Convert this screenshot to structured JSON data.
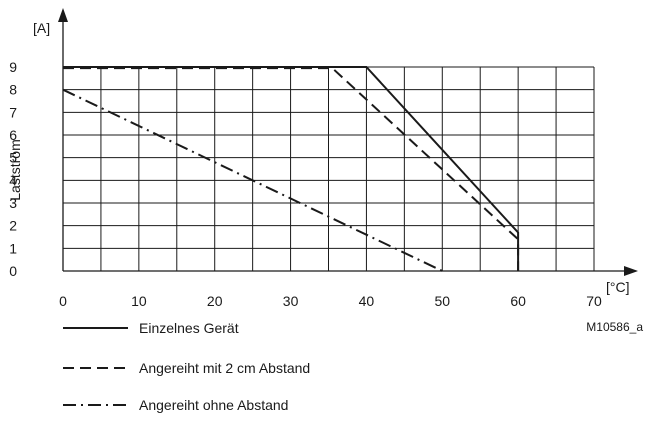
{
  "chart_data": {
    "type": "line",
    "y_unit_label": "[A]",
    "x_unit_label": "[°C]",
    "ylabel": "Laststrom",
    "xlabel": "",
    "x_ticks": [
      0,
      10,
      20,
      30,
      40,
      50,
      60,
      70
    ],
    "y_ticks": [
      0,
      1,
      2,
      3,
      4,
      5,
      6,
      7,
      8,
      9
    ],
    "xlim": [
      0,
      70
    ],
    "ylim": [
      0,
      9
    ],
    "grid": true,
    "x_grid_step": 5,
    "reference": "M10586_a",
    "legend_position": "bottom-left",
    "series": [
      {
        "name": "Einzelnes Gerät",
        "style": "solid",
        "points": [
          [
            0,
            9
          ],
          [
            40,
            9
          ],
          [
            60,
            1.7
          ],
          [
            60,
            0
          ]
        ]
      },
      {
        "name": "Angereiht mit 2 cm Abstand",
        "style": "dashed",
        "points": [
          [
            0,
            8.95
          ],
          [
            35.5,
            8.95
          ],
          [
            60,
            1.4
          ],
          [
            60,
            0
          ]
        ]
      },
      {
        "name": "Angereiht ohne Abstand",
        "style": "dashdot",
        "points": [
          [
            0,
            8
          ],
          [
            50,
            0
          ]
        ]
      }
    ]
  }
}
